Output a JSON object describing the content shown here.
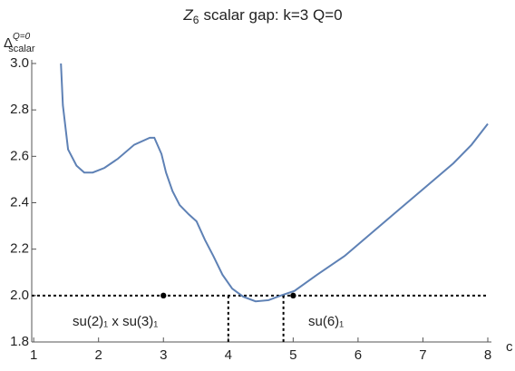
{
  "chart_data": {
    "type": "line",
    "title": {
      "symbol": "Z",
      "sub": "6",
      "rest": "scalar gap:  k=3  Q=0"
    },
    "y_label": {
      "symbol": "Δ",
      "sup": "Q=0",
      "sub": "scalar"
    },
    "x_label": "c",
    "x": [
      1.42,
      1.45,
      1.53,
      1.66,
      1.78,
      1.91,
      2.09,
      2.3,
      2.55,
      2.79,
      2.86,
      2.97,
      3.04,
      3.14,
      3.25,
      3.39,
      3.51,
      3.64,
      3.77,
      3.91,
      4.06,
      4.23,
      4.42,
      4.62,
      4.81,
      5.02,
      5.37,
      5.79,
      6.21,
      6.63,
      7.05,
      7.47,
      7.75,
      8.0
    ],
    "series": [
      {
        "color": "#5e81b5",
        "values": [
          3.0,
          2.82,
          2.63,
          2.56,
          2.53,
          2.53,
          2.55,
          2.59,
          2.65,
          2.68,
          2.68,
          2.61,
          2.53,
          2.45,
          2.39,
          2.35,
          2.32,
          2.24,
          2.17,
          2.09,
          2.03,
          1.995,
          1.975,
          1.98,
          2.0,
          2.02,
          2.09,
          2.17,
          2.27,
          2.37,
          2.47,
          2.57,
          2.65,
          2.74
        ]
      }
    ],
    "points": {
      "x": [
        3,
        5
      ],
      "y": [
        2,
        2
      ],
      "color": "#000000"
    },
    "hlines": [
      2
    ],
    "vlines": [
      4,
      4.85
    ],
    "annotations": [
      "su(2)₁ x su(3)₁",
      "su(6)₁"
    ],
    "xlim": [
      0.97,
      8.0
    ],
    "ylim": [
      1.8,
      3.0
    ],
    "xticks": [
      1,
      2,
      3,
      4,
      5,
      6,
      7,
      8
    ],
    "yticks": [
      {
        "value": 1.8,
        "label": "1.8"
      },
      {
        "value": 2,
        "label": "2.0"
      },
      2.2,
      2.4,
      2.6,
      2.8,
      {
        "value": 3,
        "label": "3.0"
      }
    ]
  }
}
